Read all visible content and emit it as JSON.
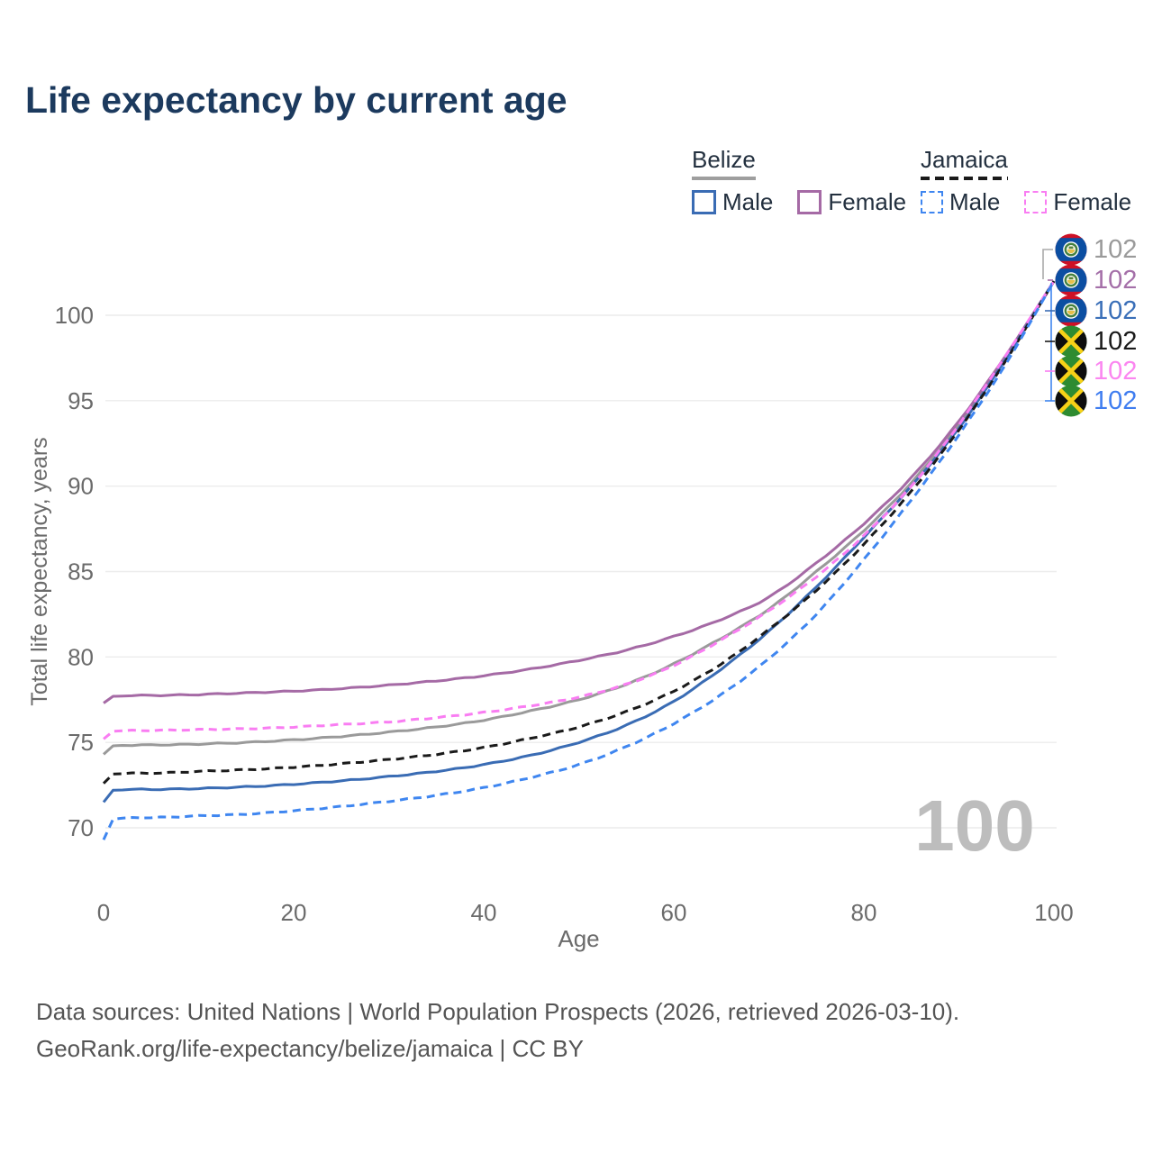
{
  "title": "Life expectancy by current age",
  "legend": {
    "groups": [
      {
        "label": "Belize",
        "dashed": false,
        "underline_color": "#9e9e9e",
        "items": [
          {
            "label": "Male",
            "color": "#3a6cb4",
            "dashed": false
          },
          {
            "label": "Female",
            "color": "#a56aa5",
            "dashed": false
          }
        ]
      },
      {
        "label": "Jamaica",
        "dashed": true,
        "underline_color": "#1a1a1a",
        "items": [
          {
            "label": "Male",
            "color": "#3f86f0",
            "dashed": true
          },
          {
            "label": "Female",
            "color": "#f97df2",
            "dashed": true
          }
        ]
      }
    ]
  },
  "age_watermark": "100",
  "footer": {
    "line1": "Data sources: United Nations | World Population Prospects (2026, retrieved 2026-03-10).",
    "line2": "GeoRank.org/life-expectancy/belize/jamaica | CC BY"
  },
  "chart_data": {
    "type": "line",
    "title": "Life expectancy by current age",
    "xlabel": "Age",
    "ylabel": "Total life expectancy, years",
    "x_ticks": [
      0,
      20,
      40,
      60,
      80,
      100
    ],
    "y_ticks": [
      70,
      75,
      80,
      85,
      90,
      95,
      100
    ],
    "xlim": [
      0,
      100
    ],
    "ylim": [
      69,
      102.5
    ],
    "grid": "horizontal",
    "legend_position": "top-right",
    "x": [
      0,
      1,
      5,
      10,
      15,
      20,
      25,
      30,
      35,
      40,
      45,
      50,
      55,
      60,
      65,
      70,
      75,
      80,
      85,
      90,
      95,
      100
    ],
    "series": [
      {
        "name": "Belize — Both sexes",
        "country": "Belize",
        "flag": "belize",
        "color": "#9a9a9a",
        "dashed": false,
        "end_label": "102",
        "end_label_color": "#9a9a9a",
        "values": [
          74.3,
          74.8,
          74.85,
          74.9,
          75.0,
          75.15,
          75.35,
          75.6,
          75.9,
          76.3,
          76.85,
          77.5,
          78.4,
          79.6,
          81.1,
          82.8,
          85.0,
          87.4,
          90.2,
          93.6,
          97.6,
          102
        ]
      },
      {
        "name": "Belize — Female",
        "country": "Belize",
        "flag": "belize",
        "color": "#a56aa5",
        "dashed": false,
        "end_label": "102",
        "end_label_color": "#a46fa8",
        "values": [
          77.3,
          77.7,
          77.75,
          77.8,
          77.9,
          78.0,
          78.15,
          78.35,
          78.6,
          78.9,
          79.3,
          79.8,
          80.4,
          81.2,
          82.2,
          83.5,
          85.5,
          87.8,
          90.5,
          93.8,
          97.7,
          102
        ]
      },
      {
        "name": "Belize — Male",
        "country": "Belize",
        "flag": "belize",
        "color": "#3a6cb4",
        "dashed": false,
        "end_label": "102",
        "end_label_color": "#3a6fb8",
        "values": [
          71.5,
          72.2,
          72.25,
          72.3,
          72.4,
          72.55,
          72.75,
          73.0,
          73.3,
          73.7,
          74.25,
          75.0,
          76.0,
          77.4,
          79.3,
          81.5,
          84.1,
          87.0,
          90.0,
          93.4,
          97.5,
          102
        ]
      },
      {
        "name": "Jamaica — Both sexes",
        "country": "Jamaica",
        "flag": "jamaica",
        "color": "#1a1a1a",
        "dashed": true,
        "end_label": "102",
        "end_label_color": "#1a1a1a",
        "values": [
          72.6,
          73.15,
          73.2,
          73.3,
          73.4,
          73.55,
          73.75,
          74.0,
          74.3,
          74.7,
          75.25,
          75.9,
          76.8,
          78.0,
          79.6,
          81.6,
          83.9,
          86.6,
          89.7,
          93.3,
          97.4,
          102
        ]
      },
      {
        "name": "Jamaica — Female",
        "country": "Jamaica",
        "flag": "jamaica",
        "color": "#f97df2",
        "dashed": true,
        "end_label": "102",
        "end_label_color": "#fb86f0",
        "values": [
          75.2,
          75.65,
          75.7,
          75.75,
          75.8,
          75.9,
          76.05,
          76.2,
          76.45,
          76.75,
          77.15,
          77.65,
          78.4,
          79.5,
          81.0,
          82.7,
          84.7,
          87.1,
          90.0,
          93.6,
          97.7,
          102
        ]
      },
      {
        "name": "Jamaica — Male",
        "country": "Jamaica",
        "flag": "jamaica",
        "color": "#3f86f0",
        "dashed": true,
        "end_label": "102",
        "end_label_color": "#3f7df0",
        "values": [
          69.3,
          70.5,
          70.6,
          70.7,
          70.8,
          71.0,
          71.25,
          71.55,
          71.9,
          72.35,
          72.95,
          73.7,
          74.75,
          76.1,
          77.8,
          79.9,
          82.5,
          85.7,
          89.2,
          93.0,
          97.2,
          102
        ]
      }
    ]
  }
}
